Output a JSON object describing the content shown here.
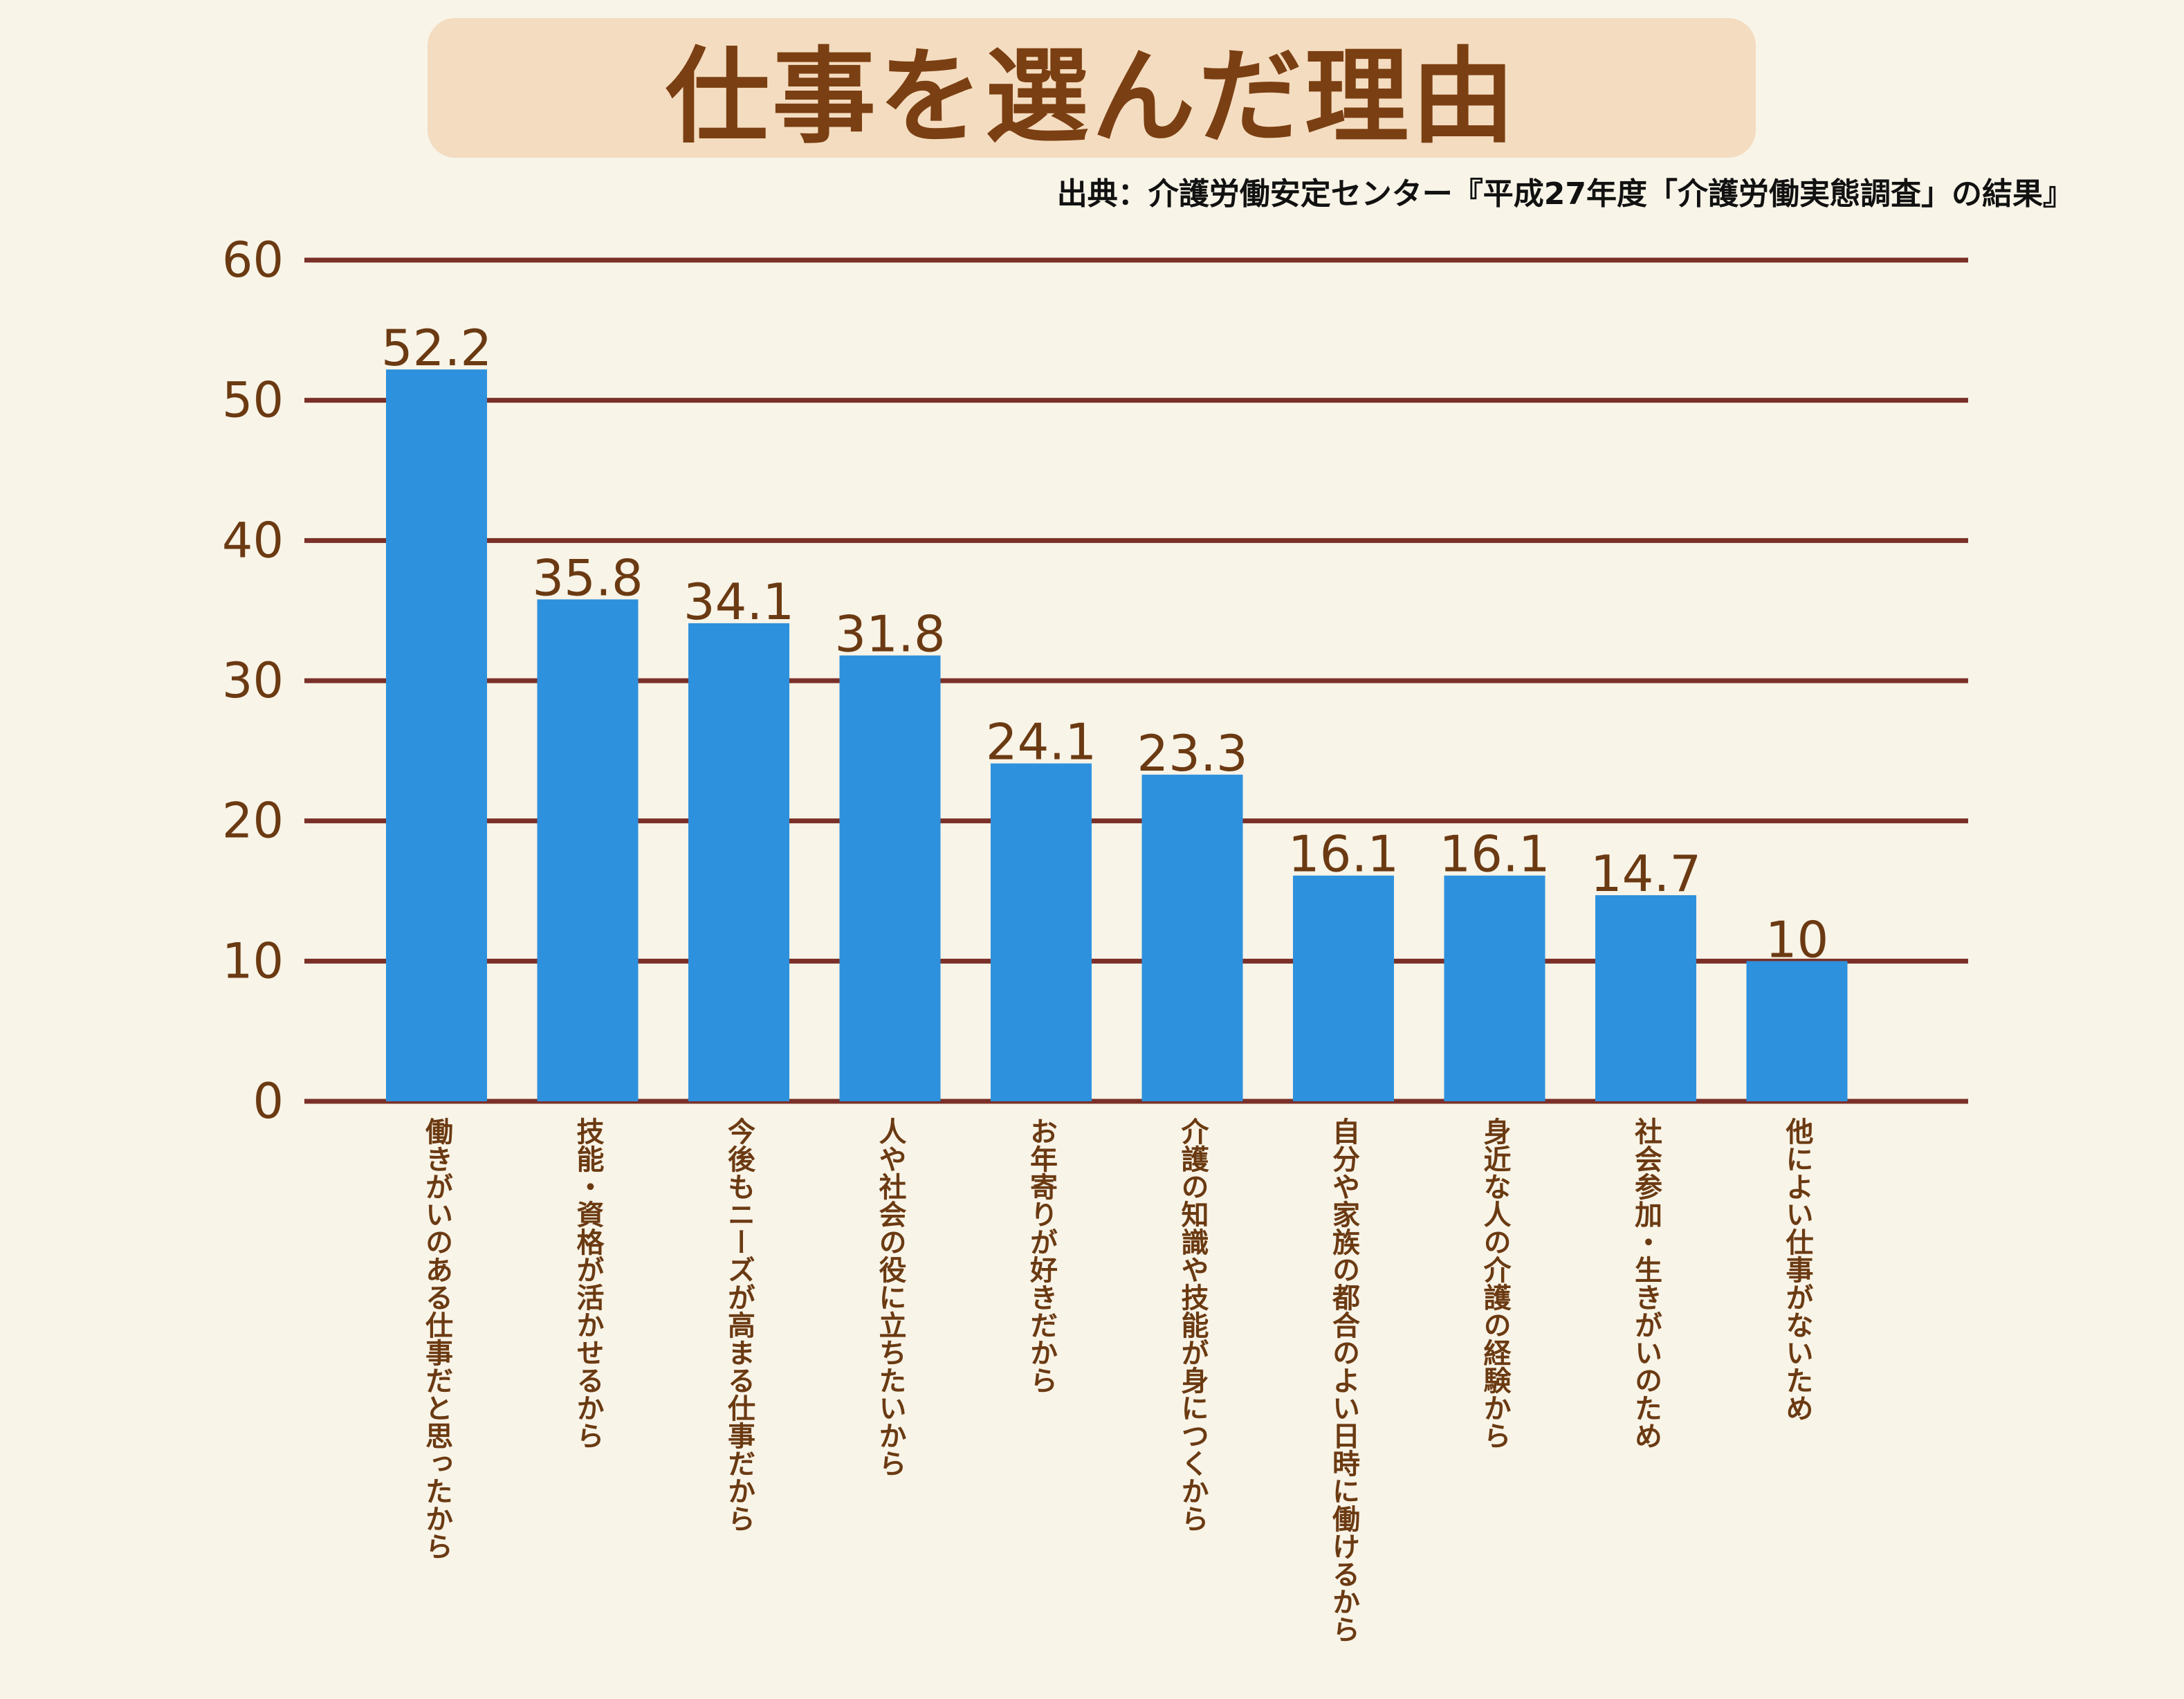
{
  "title": "仕事を選んだ理由",
  "source": "出典：介護労働安定センター『平成27年度「介護労働実態調査」の結果』",
  "colors": {
    "bar": "#2e91dd",
    "gridline": "#7a3028",
    "label": "#6b3a12",
    "title_bg": "#f4dcc0",
    "background": "#f8f4e8"
  },
  "chart_data": {
    "type": "bar",
    "categories": [
      "働きがいのある仕事だと思ったから",
      "技能・資格が活かせるから",
      "今後もニーズが高まる仕事だから",
      "人や社会の役に立ちたいから",
      "お年寄りが好きだから",
      "介護の知識や技能が身につくから",
      "自分や家族の都合のよい日時に働けるから",
      "身近な人の介護の経験から",
      "社会参加・生きがいのため",
      "他によい仕事がないため"
    ],
    "values": [
      52.2,
      35.8,
      34.1,
      31.8,
      24.1,
      23.3,
      16.1,
      16.1,
      14.7,
      10
    ],
    "value_labels": [
      "52.2",
      "35.8",
      "34.1",
      "31.8",
      "24.1",
      "23.3",
      "16.1",
      "16.1",
      "14.7",
      "10"
    ],
    "yticks": [
      "0",
      "10",
      "20",
      "30",
      "40",
      "50",
      "60"
    ],
    "ylim": [
      0,
      60
    ],
    "grid": true,
    "legend": "none"
  }
}
